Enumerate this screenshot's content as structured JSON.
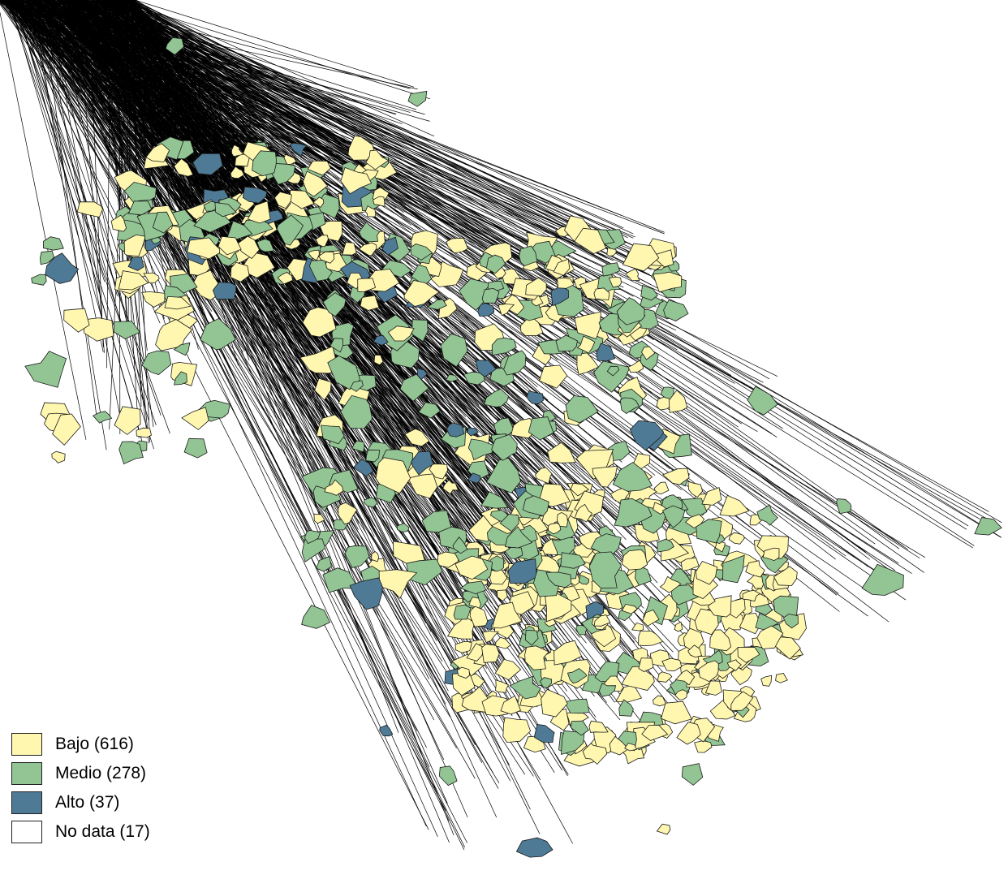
{
  "map": {
    "background": "#ffffff",
    "line_color": "#000000",
    "colors": {
      "bajo": "#fff7b0",
      "medio": "#93c594",
      "alto": "#4f7a96",
      "nodata": "#ffffff"
    }
  },
  "legend": {
    "items": [
      {
        "key": "bajo",
        "label": "Bajo (616)",
        "color": "#fff7b0"
      },
      {
        "key": "medio",
        "label": "Medio (278)",
        "color": "#93c594"
      },
      {
        "key": "alto",
        "label": "Alto (37)",
        "color": "#4f7a96"
      },
      {
        "key": "nodata",
        "label": "No data (17)",
        "color": "#ffffff"
      }
    ]
  }
}
